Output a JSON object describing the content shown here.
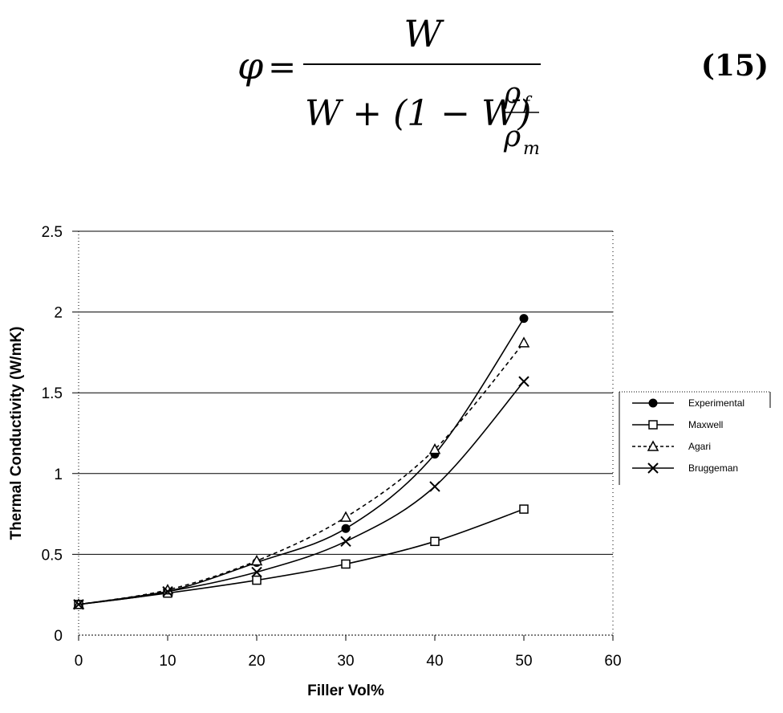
{
  "equation": {
    "lhs": "φ",
    "equals": "=",
    "numerator": "W",
    "denominator_main": "W + (1 − W)",
    "frac_num": "ρ",
    "frac_num_sub": "f",
    "frac_den": "ρ",
    "frac_den_sub": "m",
    "number": "(15)"
  },
  "chart_data": {
    "type": "line",
    "title": "",
    "xlabel": "Filler Vol%",
    "ylabel": "Thermal Conductivity (W/mK)",
    "xlim": [
      0,
      60
    ],
    "ylim": [
      0,
      2.5
    ],
    "xticks": [
      "0",
      "10",
      "20",
      "30",
      "40",
      "50",
      "60"
    ],
    "yticks": [
      "0",
      "0.5",
      "1",
      "1.5",
      "2",
      "2.5"
    ],
    "grid": "horizontal major gridlines",
    "legend_position": "right",
    "series": [
      {
        "name": "Experimental",
        "marker": "filled-circle",
        "dash": "solid",
        "x": [
          0,
          10,
          20,
          30,
          40,
          50
        ],
        "y": [
          0.19,
          0.27,
          0.45,
          0.66,
          1.12,
          1.96
        ]
      },
      {
        "name": "Maxwell",
        "marker": "open-square",
        "dash": "solid",
        "x": [
          0,
          10,
          20,
          30,
          40,
          50
        ],
        "y": [
          0.19,
          0.26,
          0.34,
          0.44,
          0.58,
          0.78
        ]
      },
      {
        "name": "Agari",
        "marker": "open-triangle",
        "dash": "dashed",
        "x": [
          0,
          10,
          20,
          30,
          40,
          50
        ],
        "y": [
          0.19,
          0.28,
          0.46,
          0.73,
          1.15,
          1.81
        ]
      },
      {
        "name": "Bruggeman",
        "marker": "x-cross",
        "dash": "solid",
        "x": [
          0,
          10,
          20,
          30,
          40,
          50
        ],
        "y": [
          0.19,
          0.27,
          0.39,
          0.58,
          0.92,
          1.57
        ]
      }
    ]
  }
}
